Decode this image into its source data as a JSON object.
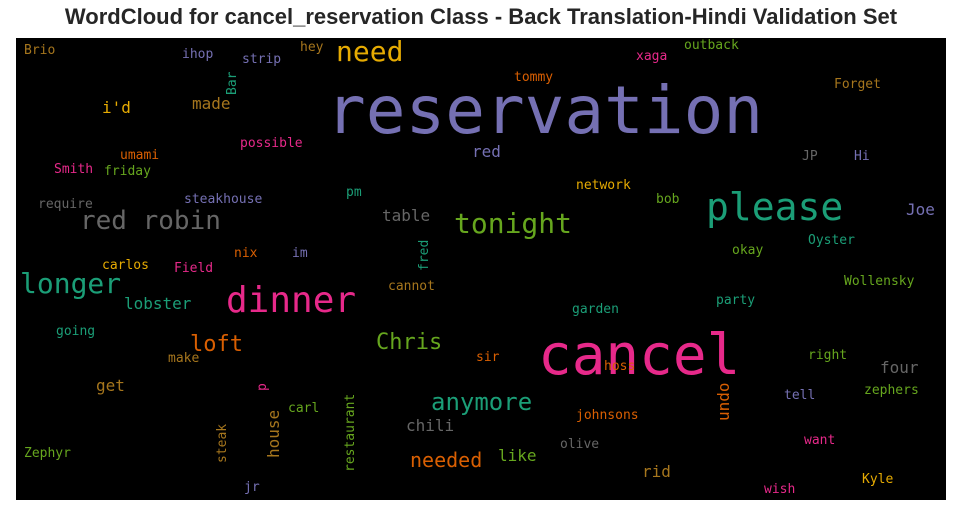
{
  "chart_data": {
    "type": "wordcloud",
    "title": "WordCloud for cancel_reservation Class - Back Translation-Hindi Validation Set",
    "background": "#000000",
    "words": [
      {
        "text": "reservation",
        "color": "#7570b3"
      },
      {
        "text": "cancel",
        "color": "#e7298a"
      },
      {
        "text": "please",
        "color": "#1b9e77"
      },
      {
        "text": "dinner",
        "color": "#e7298a"
      },
      {
        "text": "need",
        "color": "#e6ab02"
      },
      {
        "text": "red robin",
        "color": "#666666"
      },
      {
        "text": "tonight",
        "color": "#66a61e"
      },
      {
        "text": "longer",
        "color": "#1b9e77"
      },
      {
        "text": "anymore",
        "color": "#1b9e77"
      },
      {
        "text": "Chris",
        "color": "#66a61e"
      },
      {
        "text": "loft",
        "color": "#d95f02"
      },
      {
        "text": "needed",
        "color": "#d95f02"
      },
      {
        "text": "made",
        "color": "#a6761d"
      },
      {
        "text": "i'd",
        "color": "#e6ab02"
      },
      {
        "text": "lobster",
        "color": "#1b9e77"
      },
      {
        "text": "table",
        "color": "#666666"
      },
      {
        "text": "red",
        "color": "#7570b3"
      },
      {
        "text": "chili",
        "color": "#666666"
      },
      {
        "text": "like",
        "color": "#66a61e"
      },
      {
        "text": "rid",
        "color": "#a6761d"
      },
      {
        "text": "undo",
        "color": "#d95f02"
      },
      {
        "text": "four",
        "color": "#666666"
      },
      {
        "text": "Joe",
        "color": "#7570b3"
      },
      {
        "text": "get",
        "color": "#a6761d"
      },
      {
        "text": "house",
        "color": "#a6761d"
      },
      {
        "text": "Brio",
        "color": "#a6761d"
      },
      {
        "text": "ihop",
        "color": "#7570b3"
      },
      {
        "text": "strip",
        "color": "#7570b3"
      },
      {
        "text": "hey",
        "color": "#a6761d"
      },
      {
        "text": "Bar",
        "color": "#1b9e77"
      },
      {
        "text": "outback",
        "color": "#66a61e"
      },
      {
        "text": "xaga",
        "color": "#e7298a"
      },
      {
        "text": "tommy",
        "color": "#d95f02"
      },
      {
        "text": "Forget",
        "color": "#a6761d"
      },
      {
        "text": "umami",
        "color": "#d95f02"
      },
      {
        "text": "possible",
        "color": "#e7298a"
      },
      {
        "text": "Smith",
        "color": "#e7298a"
      },
      {
        "text": "friday",
        "color": "#66a61e"
      },
      {
        "text": "JP",
        "color": "#666666"
      },
      {
        "text": "Hi",
        "color": "#7570b3"
      },
      {
        "text": "require",
        "color": "#666666"
      },
      {
        "text": "steakhouse",
        "color": "#7570b3"
      },
      {
        "text": "pm",
        "color": "#1b9e77"
      },
      {
        "text": "network",
        "color": "#e6ab02"
      },
      {
        "text": "bob",
        "color": "#66a61e"
      },
      {
        "text": "fred",
        "color": "#1b9e77"
      },
      {
        "text": "Oyster",
        "color": "#1b9e77"
      },
      {
        "text": "okay",
        "color": "#66a61e"
      },
      {
        "text": "carlos",
        "color": "#e6ab02"
      },
      {
        "text": "Field",
        "color": "#e7298a"
      },
      {
        "text": "nix",
        "color": "#d95f02"
      },
      {
        "text": "im",
        "color": "#7570b3"
      },
      {
        "text": "cannot",
        "color": "#a6761d"
      },
      {
        "text": "Wollensky",
        "color": "#66a61e"
      },
      {
        "text": "party",
        "color": "#1b9e77"
      },
      {
        "text": "garden",
        "color": "#1b9e77"
      },
      {
        "text": "going",
        "color": "#1b9e77"
      },
      {
        "text": "make",
        "color": "#a6761d"
      },
      {
        "text": "sir",
        "color": "#d95f02"
      },
      {
        "text": "right",
        "color": "#66a61e"
      },
      {
        "text": "p",
        "color": "#e7298a"
      },
      {
        "text": "hoss",
        "color": "#d95f02"
      },
      {
        "text": "zephers",
        "color": "#66a61e"
      },
      {
        "text": "carl",
        "color": "#66a61e"
      },
      {
        "text": "restaurant",
        "color": "#66a61e"
      },
      {
        "text": "johnsons",
        "color": "#d95f02"
      },
      {
        "text": "tell",
        "color": "#7570b3"
      },
      {
        "text": "steak",
        "color": "#a6761d"
      },
      {
        "text": "olive",
        "color": "#666666"
      },
      {
        "text": "want",
        "color": "#e7298a"
      },
      {
        "text": "Zephyr",
        "color": "#66a61e"
      },
      {
        "text": "Kyle",
        "color": "#e6ab02"
      },
      {
        "text": "jr",
        "color": "#7570b3"
      },
      {
        "text": "wish",
        "color": "#e7298a"
      }
    ]
  }
}
